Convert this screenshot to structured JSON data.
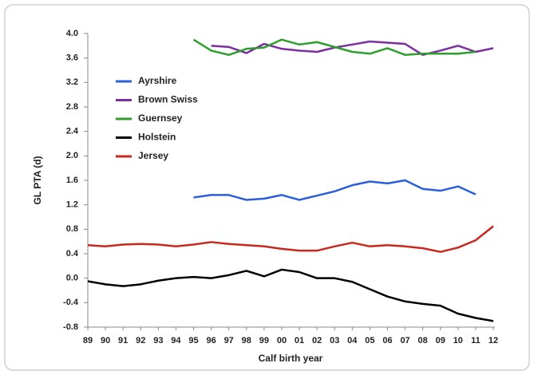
{
  "chart_data": {
    "type": "line",
    "x_label": "Calf birth year",
    "y_label": "GL PTA (d)",
    "categories": [
      "89",
      "90",
      "91",
      "92",
      "93",
      "94",
      "95",
      "96",
      "97",
      "98",
      "99",
      "00",
      "01",
      "02",
      "03",
      "04",
      "05",
      "06",
      "07",
      "08",
      "09",
      "10",
      "11",
      "12"
    ],
    "ylim": [
      -0.8,
      4.0
    ],
    "yticks": [
      {
        "value": 4.0,
        "label": "4.0"
      },
      3.6,
      3.2,
      2.8,
      2.4,
      {
        "value": 2.0,
        "label": "2.0"
      },
      1.6,
      1.2,
      0.8,
      0.4,
      {
        "value": 0.0,
        "label": "0.0"
      },
      -0.4,
      -0.8
    ],
    "grid": false,
    "legend": "upper-left",
    "series": [
      {
        "name": "Ayrshire",
        "color": "#2b5fd9",
        "values": [
          null,
          null,
          null,
          null,
          null,
          null,
          1.32,
          1.36,
          1.36,
          1.28,
          1.3,
          1.36,
          1.28,
          1.35,
          1.42,
          1.52,
          1.58,
          1.55,
          1.6,
          1.46,
          1.43,
          1.5,
          1.37,
          null
        ]
      },
      {
        "name": "Brown Swiss",
        "color": "#7b2f9e",
        "values": [
          null,
          null,
          null,
          null,
          null,
          null,
          null,
          3.8,
          3.78,
          3.68,
          3.83,
          3.75,
          3.72,
          3.7,
          3.77,
          3.82,
          3.87,
          3.85,
          3.83,
          3.65,
          3.72,
          3.8,
          3.7,
          3.76
        ]
      },
      {
        "name": "Guernsey",
        "color": "#2e9e2e",
        "values": [
          null,
          null,
          null,
          null,
          null,
          null,
          3.9,
          3.72,
          3.65,
          3.75,
          3.77,
          3.9,
          3.82,
          3.86,
          3.78,
          3.7,
          3.67,
          3.76,
          3.65,
          3.67,
          3.67,
          3.67,
          3.7,
          null
        ]
      },
      {
        "name": "Holstein",
        "color": "#000000",
        "values": [
          -0.05,
          -0.1,
          -0.13,
          -0.1,
          -0.04,
          0.0,
          0.02,
          0.0,
          0.05,
          0.12,
          0.03,
          0.14,
          0.1,
          0.0,
          0.0,
          -0.06,
          -0.18,
          -0.3,
          -0.38,
          -0.42,
          -0.45,
          -0.58,
          -0.65,
          -0.7
        ]
      },
      {
        "name": "Jersey",
        "color": "#c8281e",
        "values": [
          0.54,
          0.52,
          0.55,
          0.56,
          0.55,
          0.52,
          0.55,
          0.59,
          0.56,
          0.54,
          0.52,
          0.48,
          0.45,
          0.45,
          0.52,
          0.58,
          0.52,
          0.54,
          0.52,
          0.49,
          0.43,
          0.5,
          0.62,
          0.85
        ]
      }
    ]
  }
}
